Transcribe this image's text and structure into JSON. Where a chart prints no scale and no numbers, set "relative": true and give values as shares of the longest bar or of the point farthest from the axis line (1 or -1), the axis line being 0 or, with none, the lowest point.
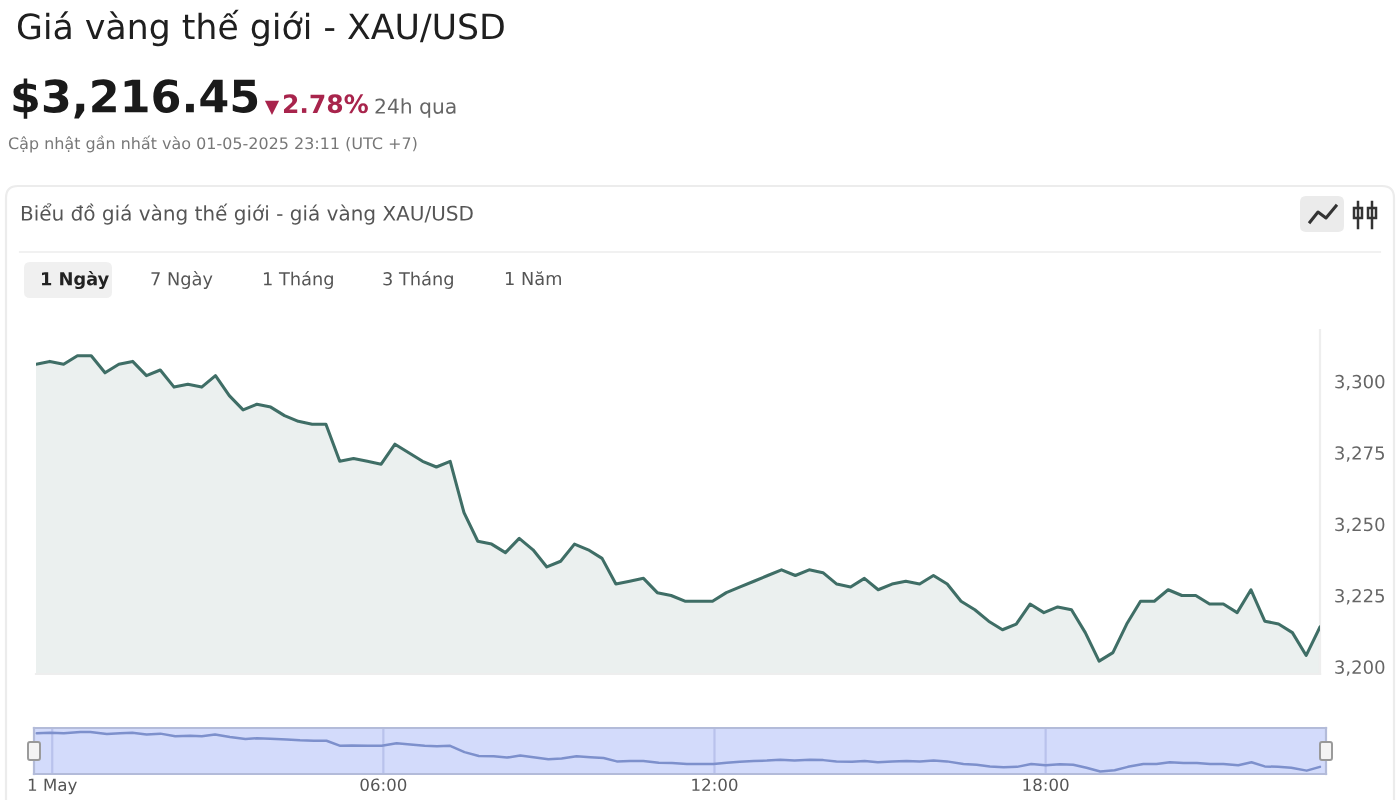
{
  "chart_data": [
    {
      "type": "area",
      "title": "Giá vàng thế giới - XAU/USD",
      "subtitle": "Biểu đồ giá vàng thế giới - giá vàng XAU/USD",
      "annotations": [
        "$3,216.45",
        "2.78%",
        "24h qua",
        "Cập nhật gần nhất vào 01-05-2025 23:11 (UTC +7)",
        "1 Ngày",
        "7 Ngày",
        "1 Tháng",
        "3 Tháng",
        "1 Năm"
      ],
      "categories": [
        null,
        null,
        null,
        null,
        null,
        null,
        null,
        null,
        null,
        null,
        null,
        null,
        null,
        null,
        null,
        null,
        null,
        null,
        null,
        null,
        null,
        null,
        null,
        null,
        null,
        null,
        null,
        null,
        null,
        null,
        null,
        null,
        null,
        null,
        null,
        null,
        null,
        null,
        null,
        null,
        null,
        null,
        null,
        null,
        null,
        null,
        null,
        null,
        null,
        null,
        null,
        null,
        null,
        null,
        null,
        null,
        null,
        null,
        null,
        null,
        null,
        null,
        null,
        null,
        null,
        null,
        null,
        null,
        null,
        null,
        null,
        null,
        null,
        null,
        null,
        null,
        null,
        null,
        null,
        null,
        null,
        null,
        null,
        null,
        null,
        null,
        null,
        null,
        null,
        null,
        null,
        null,
        null,
        null
      ],
      "values": [
        3306,
        3307,
        3306,
        3309,
        3309,
        3303,
        3306,
        3307,
        3302,
        3304,
        3298,
        3299,
        3298,
        3302,
        3295,
        3290,
        3292,
        3291,
        3288,
        3286,
        3285,
        3285,
        3272,
        3273,
        3272,
        3271,
        3278,
        3275,
        3272,
        3270,
        3272,
        3254,
        3244,
        3243,
        3240,
        3245,
        3241,
        3235,
        3237,
        3243,
        3241,
        3238,
        3229,
        3230,
        3231,
        3226,
        3225,
        3223,
        3223,
        3223,
        3226,
        3228,
        3230,
        3232,
        3234,
        3232,
        3234,
        3233,
        3229,
        3228,
        3231,
        3227,
        3229,
        3230,
        3229,
        3232,
        3229,
        3223,
        3220,
        3216,
        3213,
        3215,
        3222,
        3219,
        3221,
        3220,
        3212,
        3202,
        3205,
        3215,
        3223,
        3223,
        3227,
        3225,
        3225,
        3222,
        3222,
        3219,
        3227,
        3216,
        3215,
        3212,
        3204,
        3214
      ],
      "color": "#3f6e66",
      "ylim": [
        3197.5,
        3318
      ],
      "yticks": [
        {
          "value": 3200,
          "label": "3,200"
        },
        {
          "value": 3225,
          "label": "3,225"
        },
        {
          "value": 3250,
          "label": "3,250"
        },
        {
          "value": 3275,
          "label": "3,275"
        },
        {
          "value": 3300,
          "label": "3,300"
        }
      ],
      "tick_labels": "y"
    },
    {
      "type": "line",
      "relative": true,
      "x": [
        -0.28,
        -0.04,
        0.21,
        0.51,
        0.69,
        0.99,
        1.23,
        1.45,
        1.71,
        1.96,
        2.23,
        2.5,
        2.71,
        2.95,
        3.22,
        3.5,
        3.71,
        3.95,
        4.25,
        4.49,
        4.74,
        4.97,
        5.22,
        5.43,
        5.72,
        5.97,
        6.24,
        6.49,
        6.75,
        6.97,
        7.21,
        7.47,
        7.73,
        8.0,
        8.24,
        8.48,
        8.72,
        8.99,
        9.23,
        9.5,
        9.75,
        9.99,
        10.23,
        10.47,
        10.71,
        10.99,
        11.23,
        11.5,
        11.74,
        11.98,
        12.22,
        12.46,
        12.71,
        12.95,
        13.19,
        13.45,
        13.73,
        13.97,
        14.21,
        14.49,
        14.72,
        14.96,
        15.22,
        15.48,
        15.72,
        15.97,
        16.21,
        16.51,
        16.75,
        16.99,
        17.24,
        17.48,
        17.74,
        18.0,
        18.26,
        18.5,
        18.74,
        18.99,
        19.25,
        19.49,
        19.77,
        20.01,
        20.25,
        20.5,
        20.74,
        20.98,
        21.22,
        21.49,
        21.73,
        21.97,
        22.21,
        22.45,
        22.73,
        22.97
      ],
      "values": [
        0.97,
        0.98,
        0.97,
        1.0,
        1.0,
        0.95,
        0.97,
        0.98,
        0.94,
        0.96,
        0.9,
        0.91,
        0.9,
        0.94,
        0.88,
        0.83,
        0.85,
        0.84,
        0.82,
        0.8,
        0.79,
        0.79,
        0.67,
        0.68,
        0.67,
        0.67,
        0.73,
        0.7,
        0.67,
        0.66,
        0.67,
        0.52,
        0.43,
        0.42,
        0.39,
        0.44,
        0.4,
        0.35,
        0.37,
        0.42,
        0.4,
        0.38,
        0.3,
        0.31,
        0.31,
        0.27,
        0.26,
        0.24,
        0.24,
        0.24,
        0.27,
        0.29,
        0.31,
        0.32,
        0.34,
        0.32,
        0.34,
        0.33,
        0.3,
        0.29,
        0.31,
        0.28,
        0.3,
        0.31,
        0.3,
        0.32,
        0.3,
        0.24,
        0.22,
        0.18,
        0.16,
        0.17,
        0.24,
        0.21,
        0.23,
        0.22,
        0.15,
        0.06,
        0.09,
        0.17,
        0.24,
        0.24,
        0.28,
        0.26,
        0.26,
        0.24,
        0.24,
        0.21,
        0.28,
        0.18,
        0.17,
        0.15,
        0.08,
        0.17
      ],
      "color": "#7d90cc",
      "xlim": [
        -0.33,
        23.08
      ],
      "xticks": [
        {
          "value": 0,
          "label": "1 May"
        },
        {
          "value": 6,
          "label": "06:00"
        },
        {
          "value": 12,
          "label": "12:00"
        },
        {
          "value": 18,
          "label": "18:00"
        }
      ],
      "tick_labels": "x",
      "grid": "x"
    }
  ]
}
